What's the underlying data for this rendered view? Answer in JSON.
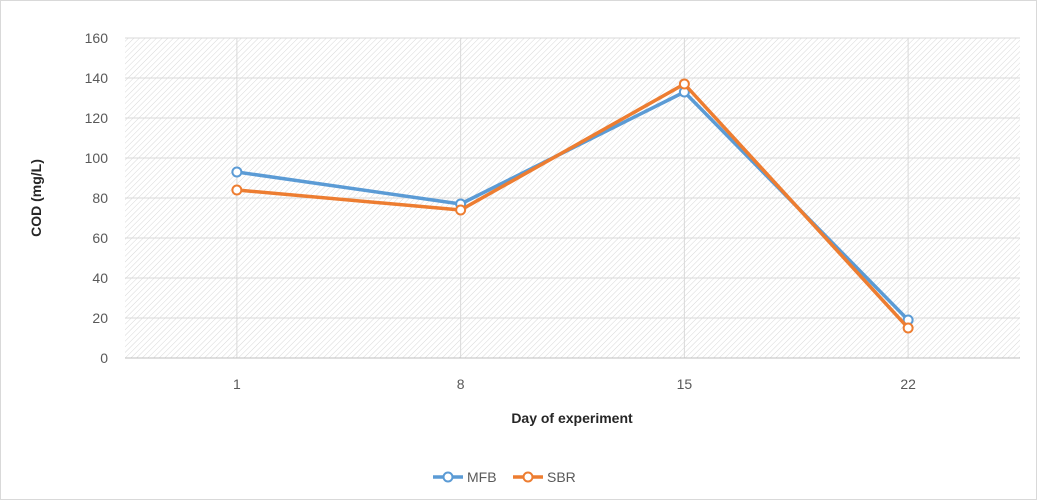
{
  "chart_data": {
    "type": "line",
    "title": "",
    "xlabel": "Day of experiment",
    "ylabel": "COD (mg/L)",
    "categories": [
      "1",
      "8",
      "15",
      "22"
    ],
    "ylim": [
      0,
      160
    ],
    "yticks": [
      "0",
      "20",
      "40",
      "60",
      "80",
      "100",
      "120",
      "140",
      "160"
    ],
    "grid": true,
    "legend_position": "bottom",
    "series": [
      {
        "name": "MFB",
        "color": "#5b9bd5",
        "values": [
          93,
          77,
          133,
          19
        ]
      },
      {
        "name": "SBR",
        "color": "#ed7d31",
        "values": [
          84,
          74,
          137,
          15
        ]
      }
    ]
  }
}
